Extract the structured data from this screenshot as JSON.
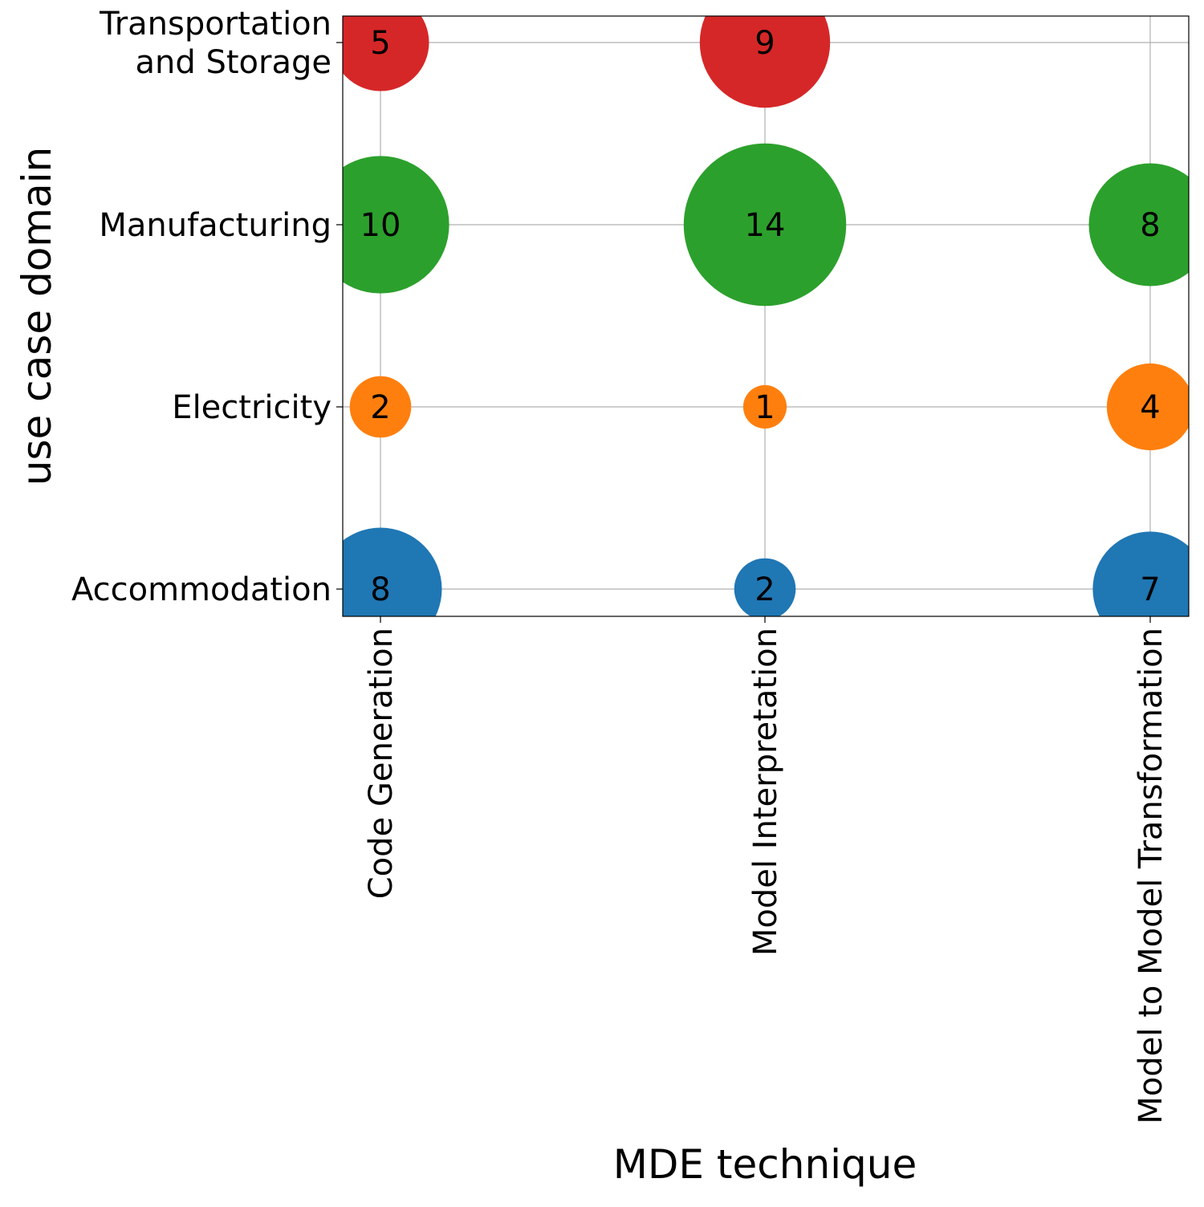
{
  "chart_data": {
    "type": "bubble",
    "title": "",
    "xlabel": "MDE technique",
    "ylabel": "use case domain",
    "x_categories": [
      "Code Generation",
      "Model Interpretation",
      "Model to Model Transformation"
    ],
    "y_categories": [
      {
        "name": "Accommodation",
        "lines": [
          "Accommodation"
        ],
        "color": "#1f77b4"
      },
      {
        "name": "Electricity",
        "lines": [
          "Electricity"
        ],
        "color": "#ff7f0e"
      },
      {
        "name": "Manufacturing",
        "lines": [
          "Manufacturing"
        ],
        "color": "#2ca02c"
      },
      {
        "name": "Transportation and Storage",
        "lines": [
          "Transportation",
          "and Storage"
        ],
        "color": "#d62728"
      }
    ],
    "points": [
      {
        "x": "Code Generation",
        "y": "Accommodation",
        "value": 8
      },
      {
        "x": "Model Interpretation",
        "y": "Accommodation",
        "value": 2
      },
      {
        "x": "Model to Model Transformation",
        "y": "Accommodation",
        "value": 7
      },
      {
        "x": "Code Generation",
        "y": "Electricity",
        "value": 2
      },
      {
        "x": "Model Interpretation",
        "y": "Electricity",
        "value": 1
      },
      {
        "x": "Model to Model Transformation",
        "y": "Electricity",
        "value": 4
      },
      {
        "x": "Code Generation",
        "y": "Manufacturing",
        "value": 10
      },
      {
        "x": "Model Interpretation",
        "y": "Manufacturing",
        "value": 14
      },
      {
        "x": "Model to Model Transformation",
        "y": "Manufacturing",
        "value": 8
      },
      {
        "x": "Code Generation",
        "y": "Transportation and Storage",
        "value": 5
      },
      {
        "x": "Model Interpretation",
        "y": "Transportation and Storage",
        "value": 9
      }
    ],
    "grid": true,
    "legend": "none"
  }
}
